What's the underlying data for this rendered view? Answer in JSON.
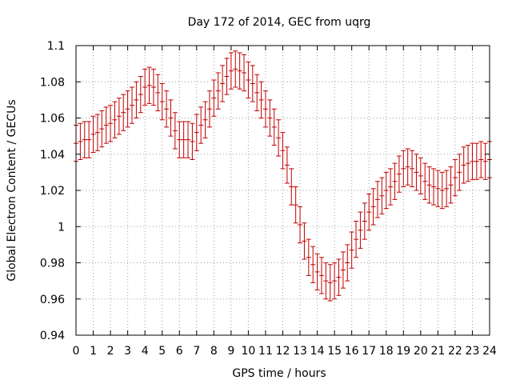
{
  "chart_data": {
    "type": "scatter",
    "title": "Day 172 of 2014, GEC from uqrg",
    "xlabel": "GPS time / hours",
    "ylabel": "Global Electron Content / GECUs",
    "xlim": [
      0,
      24
    ],
    "ylim": [
      0.94,
      1.1
    ],
    "x_ticks": [
      0,
      1,
      2,
      3,
      4,
      5,
      6,
      7,
      8,
      9,
      10,
      11,
      12,
      13,
      14,
      15,
      16,
      17,
      18,
      19,
      20,
      21,
      22,
      23,
      24
    ],
    "y_ticks": [
      0.94,
      0.96,
      0.98,
      1,
      1.02,
      1.04,
      1.06,
      1.08,
      1.1
    ],
    "y_tick_labels": [
      "0.94",
      "0.96",
      "0.98",
      "1",
      "1.02",
      "1.04",
      "1.06",
      "1.08",
      "1.1"
    ],
    "grid": true,
    "error_bar_half_width": 0.01,
    "series": [
      {
        "name": "GEC",
        "color": "#c00000",
        "x": [
          0,
          0.25,
          0.5,
          0.75,
          1,
          1.25,
          1.5,
          1.75,
          2,
          2.25,
          2.5,
          2.75,
          3,
          3.25,
          3.5,
          3.75,
          4,
          4.25,
          4.5,
          4.75,
          5,
          5.25,
          5.5,
          5.75,
          6,
          6.25,
          6.5,
          6.75,
          7,
          7.25,
          7.5,
          7.75,
          8,
          8.25,
          8.5,
          8.75,
          9,
          9.25,
          9.5,
          9.75,
          10,
          10.25,
          10.5,
          10.75,
          11,
          11.25,
          11.5,
          11.75,
          12,
          12.25,
          12.5,
          12.75,
          13,
          13.25,
          13.5,
          13.75,
          14,
          14.25,
          14.5,
          14.75,
          15,
          15.25,
          15.5,
          15.75,
          16,
          16.25,
          16.5,
          16.75,
          17,
          17.25,
          17.5,
          17.75,
          18,
          18.25,
          18.5,
          18.75,
          19,
          19.25,
          19.5,
          19.75,
          20,
          20.25,
          20.5,
          20.75,
          21,
          21.25,
          21.5,
          21.75,
          22,
          22.25,
          22.5,
          22.75,
          23,
          23.25,
          23.5,
          23.75,
          24
        ],
        "y": [
          1.046,
          1.047,
          1.048,
          1.048,
          1.051,
          1.052,
          1.054,
          1.056,
          1.057,
          1.059,
          1.061,
          1.063,
          1.065,
          1.067,
          1.07,
          1.073,
          1.077,
          1.078,
          1.077,
          1.074,
          1.069,
          1.065,
          1.06,
          1.053,
          1.048,
          1.048,
          1.048,
          1.047,
          1.052,
          1.056,
          1.059,
          1.065,
          1.071,
          1.075,
          1.079,
          1.083,
          1.086,
          1.087,
          1.086,
          1.085,
          1.081,
          1.079,
          1.074,
          1.07,
          1.065,
          1.06,
          1.055,
          1.049,
          1.042,
          1.034,
          1.022,
          1.012,
          1.001,
          0.992,
          0.983,
          0.979,
          0.975,
          0.973,
          0.97,
          0.969,
          0.97,
          0.972,
          0.976,
          0.98,
          0.987,
          0.993,
          0.998,
          1.003,
          1.008,
          1.011,
          1.015,
          1.017,
          1.02,
          1.022,
          1.025,
          1.029,
          1.032,
          1.033,
          1.032,
          1.03,
          1.028,
          1.025,
          1.023,
          1.022,
          1.021,
          1.02,
          1.021,
          1.023,
          1.027,
          1.03,
          1.034,
          1.035,
          1.036,
          1.036,
          1.037,
          1.036,
          1.037
        ]
      }
    ]
  }
}
